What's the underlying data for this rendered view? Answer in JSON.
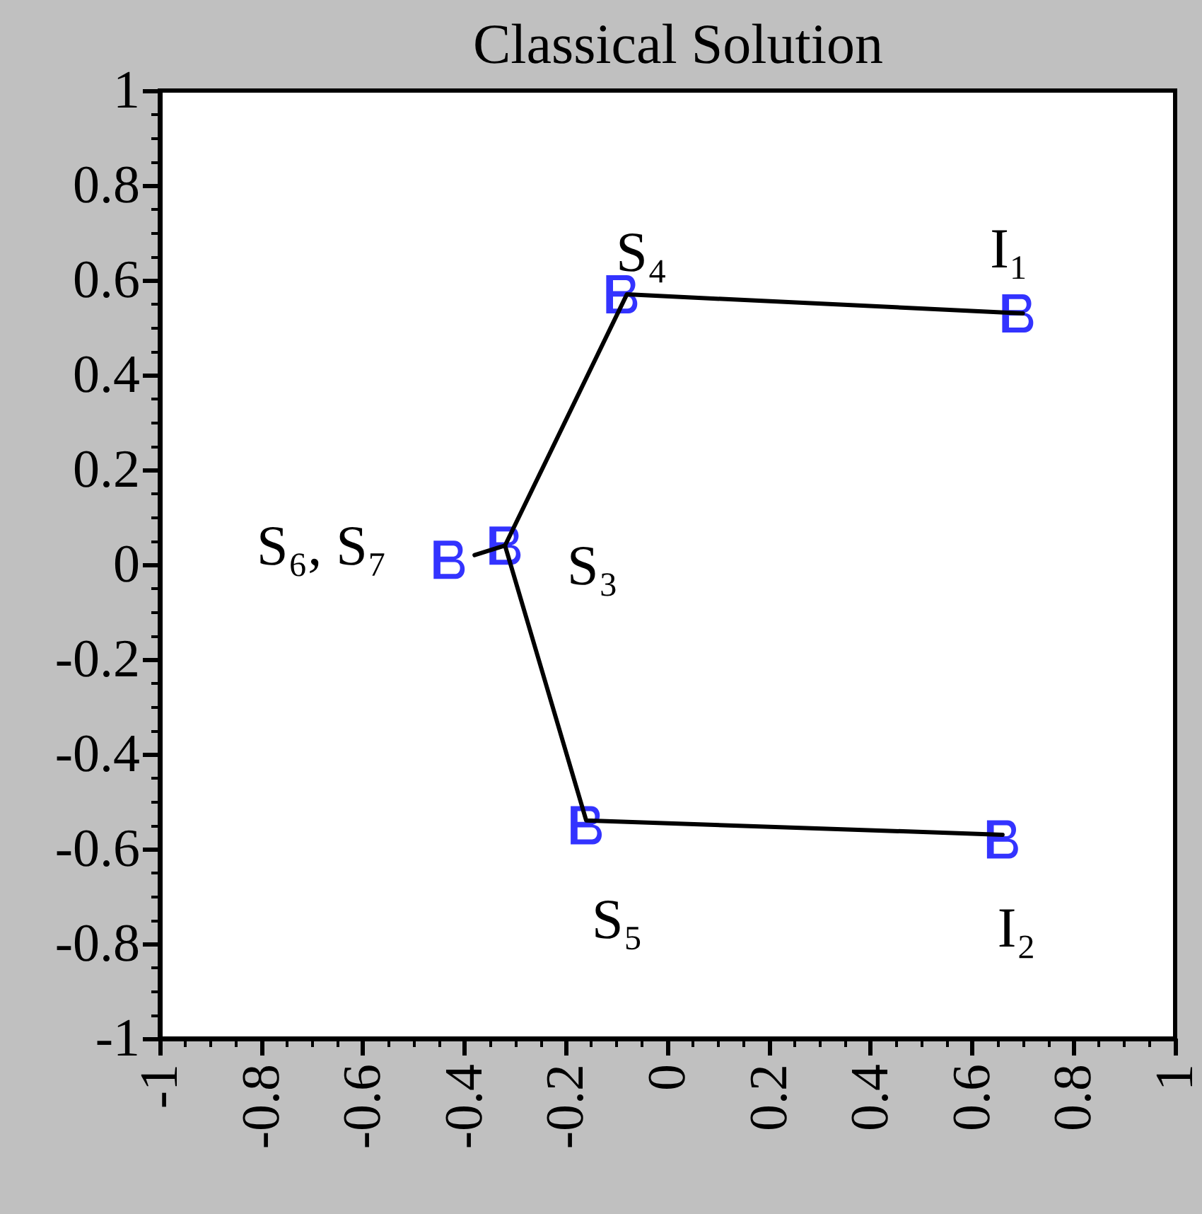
{
  "chart_data": {
    "type": "line",
    "title": "Classical Solution",
    "xlim": [
      -1,
      1
    ],
    "ylim": [
      -1,
      1
    ],
    "xticks": [
      -1,
      -0.8,
      -0.6,
      -0.4,
      -0.2,
      0,
      0.2,
      0.4,
      0.6,
      0.8,
      1
    ],
    "yticks": [
      -1,
      -0.8,
      -0.6,
      -0.4,
      -0.2,
      0,
      0.2,
      0.4,
      0.6,
      0.8,
      1
    ],
    "series": [
      {
        "color": "#000000",
        "marker": "none",
        "x": [
          -0.38,
          -0.32,
          -0.08,
          0.7
        ],
        "values": [
          0.02,
          0.04,
          0.57,
          0.53
        ]
      },
      {
        "color": "#000000",
        "marker": "none",
        "x": [
          -0.32,
          -0.16,
          0.66
        ],
        "values": [
          0.04,
          -0.54,
          -0.57
        ]
      },
      {
        "type": "scatter",
        "color": "#0000ff",
        "x": [
          -0.43,
          -0.32,
          -0.09,
          0.69,
          -0.16,
          0.66
        ],
        "values": [
          0.01,
          0.04,
          0.57,
          0.53,
          -0.55,
          -0.58
        ]
      }
    ],
    "annotations": [
      {
        "text": "S₄",
        "x": -0.09,
        "y": 0.57
      },
      {
        "text": "I₁",
        "x": 0.69,
        "y": 0.53
      },
      {
        "text": "S₆, S₇",
        "x": -0.43,
        "y": 0.01
      },
      {
        "text": "S₃",
        "x": -0.32,
        "y": 0.04
      },
      {
        "text": "S₅",
        "x": -0.16,
        "y": -0.55
      },
      {
        "text": "I₂",
        "x": 0.66,
        "y": -0.58
      }
    ]
  }
}
